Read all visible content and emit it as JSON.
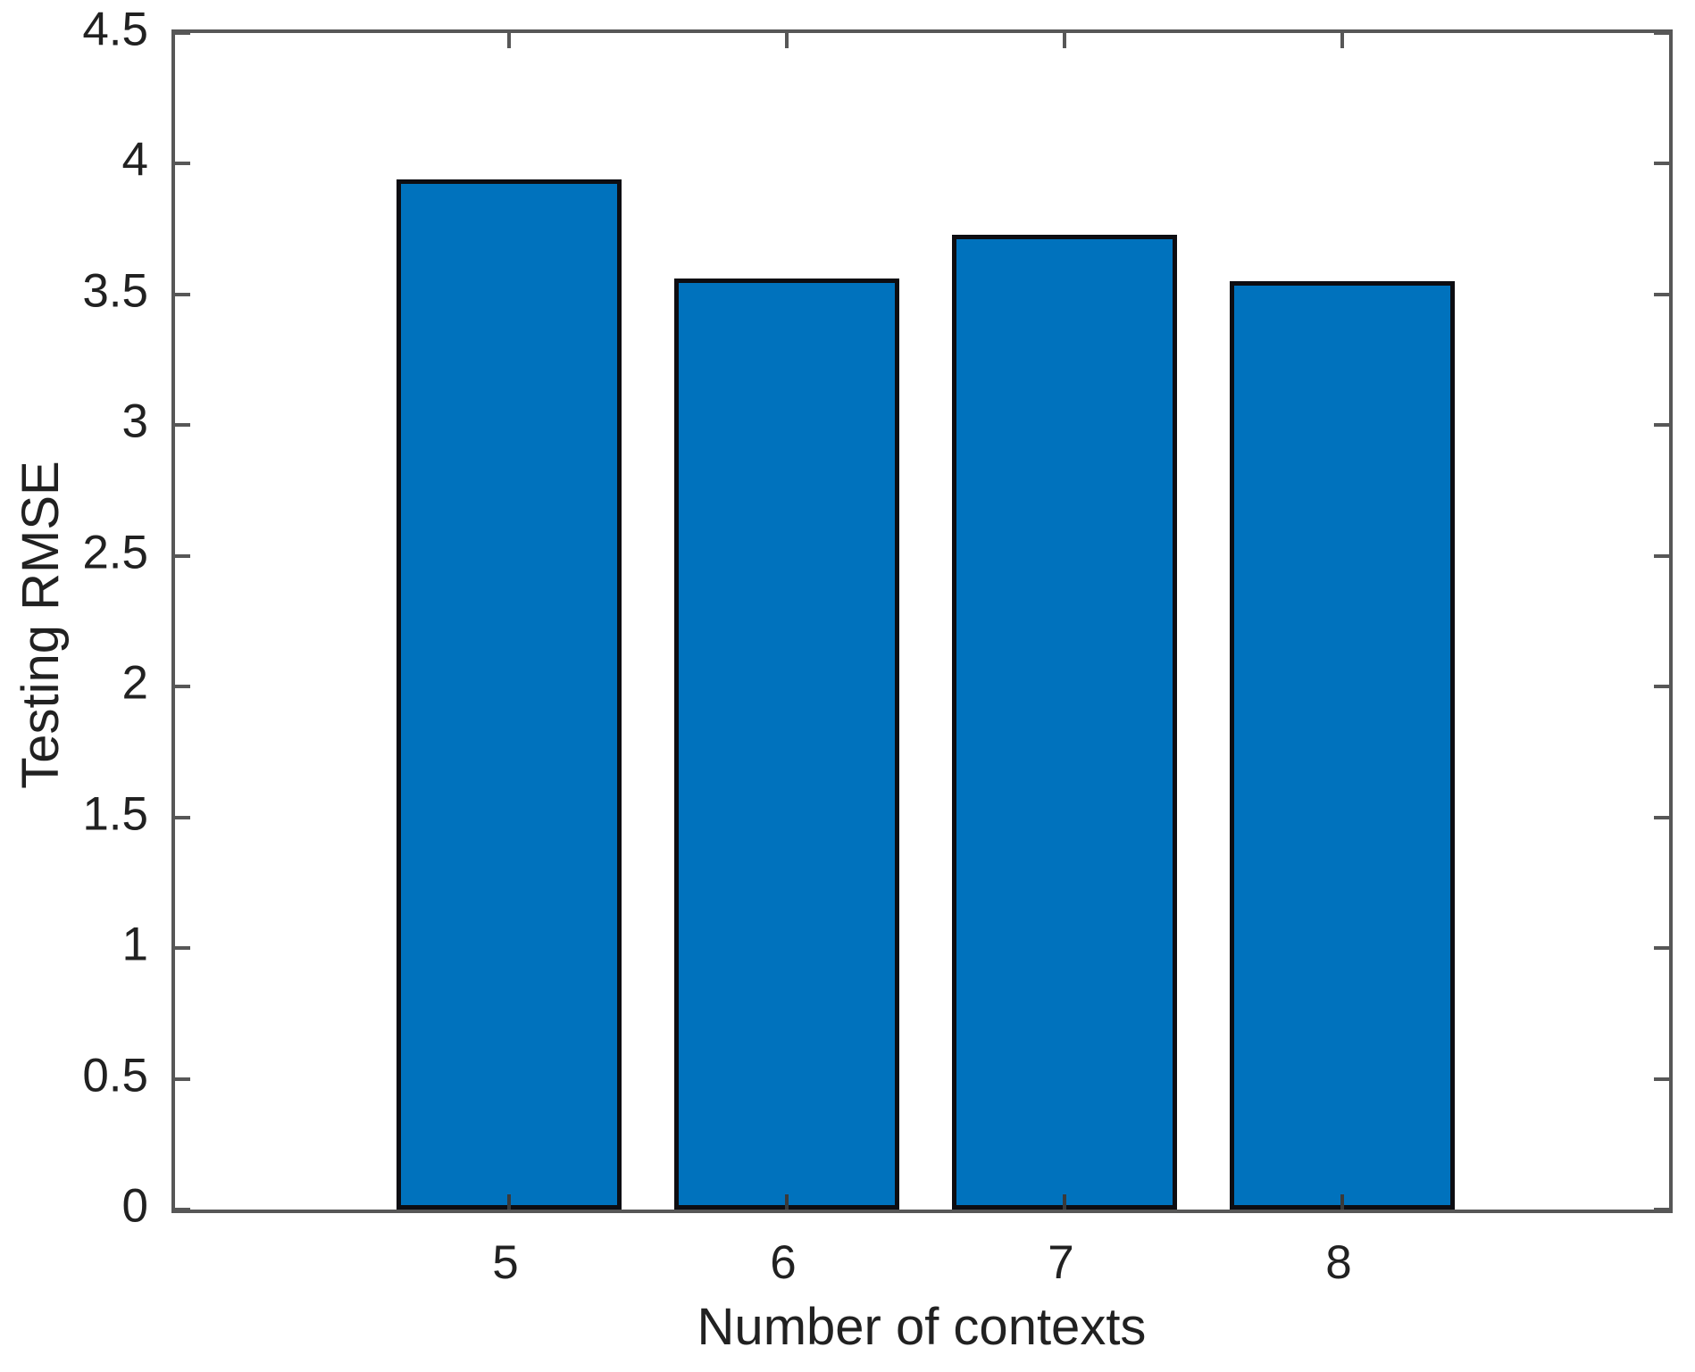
{
  "chart_data": {
    "type": "bar",
    "title": "",
    "xlabel": "Number of contexts",
    "ylabel": "Testing RMSE",
    "categories": [
      "5",
      "6",
      "7",
      "8"
    ],
    "values": [
      3.94,
      3.56,
      3.73,
      3.55
    ],
    "ylim": [
      0,
      4.5
    ],
    "ytick_labels": [
      "0",
      "0.5",
      "1",
      "1.5",
      "2",
      "2.5",
      "3",
      "3.5",
      "4",
      "4.5"
    ],
    "grid": false,
    "legend": "none",
    "box_on": true,
    "colors": {
      "bar_fill": "#0072BD",
      "bar_edge": "#0D0D12",
      "axis": "#575757",
      "bottom_tick": "#3A3A3A",
      "text": "#212121",
      "background": "#FFFFFF"
    }
  }
}
